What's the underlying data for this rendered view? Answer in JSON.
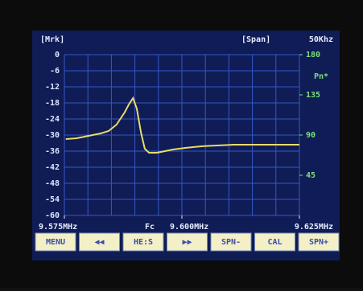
{
  "chart_data": {
    "type": "line",
    "marker_label": "[Mrk]",
    "span_label": "[Span]",
    "span_value": "50Khz",
    "center_label": "Fc",
    "y2_unit_label": "Pn*",
    "x": [
      9.5753,
      9.5776,
      9.5793,
      9.581,
      9.5827,
      9.5844,
      9.5861,
      9.5878,
      9.5887,
      9.5896,
      9.5904,
      9.5913,
      9.5921,
      9.593,
      9.5947,
      9.5964,
      9.5981,
      9.6007,
      9.6041,
      9.611,
      9.6178,
      9.625
    ],
    "series": [
      {
        "color": "#e8dc6a",
        "values": [
          -31.5,
          -31.2,
          -30.6,
          -30,
          -29.4,
          -28.5,
          -26.1,
          -21.6,
          -18.6,
          -16.2,
          -20.1,
          -29.1,
          -35.1,
          -36.6,
          -36.6,
          -36,
          -35.4,
          -34.8,
          -34.2,
          -33.6,
          -33.6,
          -33.6
        ]
      }
    ],
    "xlim": [
      9.575,
      9.625
    ],
    "xticks": [
      {
        "value": 9.575,
        "label": "9.575MHz"
      },
      {
        "value": 9.6,
        "label": "9.600MHz"
      },
      {
        "value": 9.625,
        "label": "9.625MHz"
      }
    ],
    "ylim": [
      -60,
      0
    ],
    "yticks": [
      0,
      -6,
      -12,
      -18,
      -24,
      -30,
      -36,
      -42,
      -48,
      -54,
      -60
    ],
    "y2lim": [
      0,
      180
    ],
    "y2ticks": [
      180,
      135,
      90,
      45
    ],
    "grid": true,
    "buttons": [
      "MENU",
      "◀◀",
      "HE:S",
      "▶▶",
      "SPN-",
      "CAL",
      "SPN+"
    ]
  }
}
